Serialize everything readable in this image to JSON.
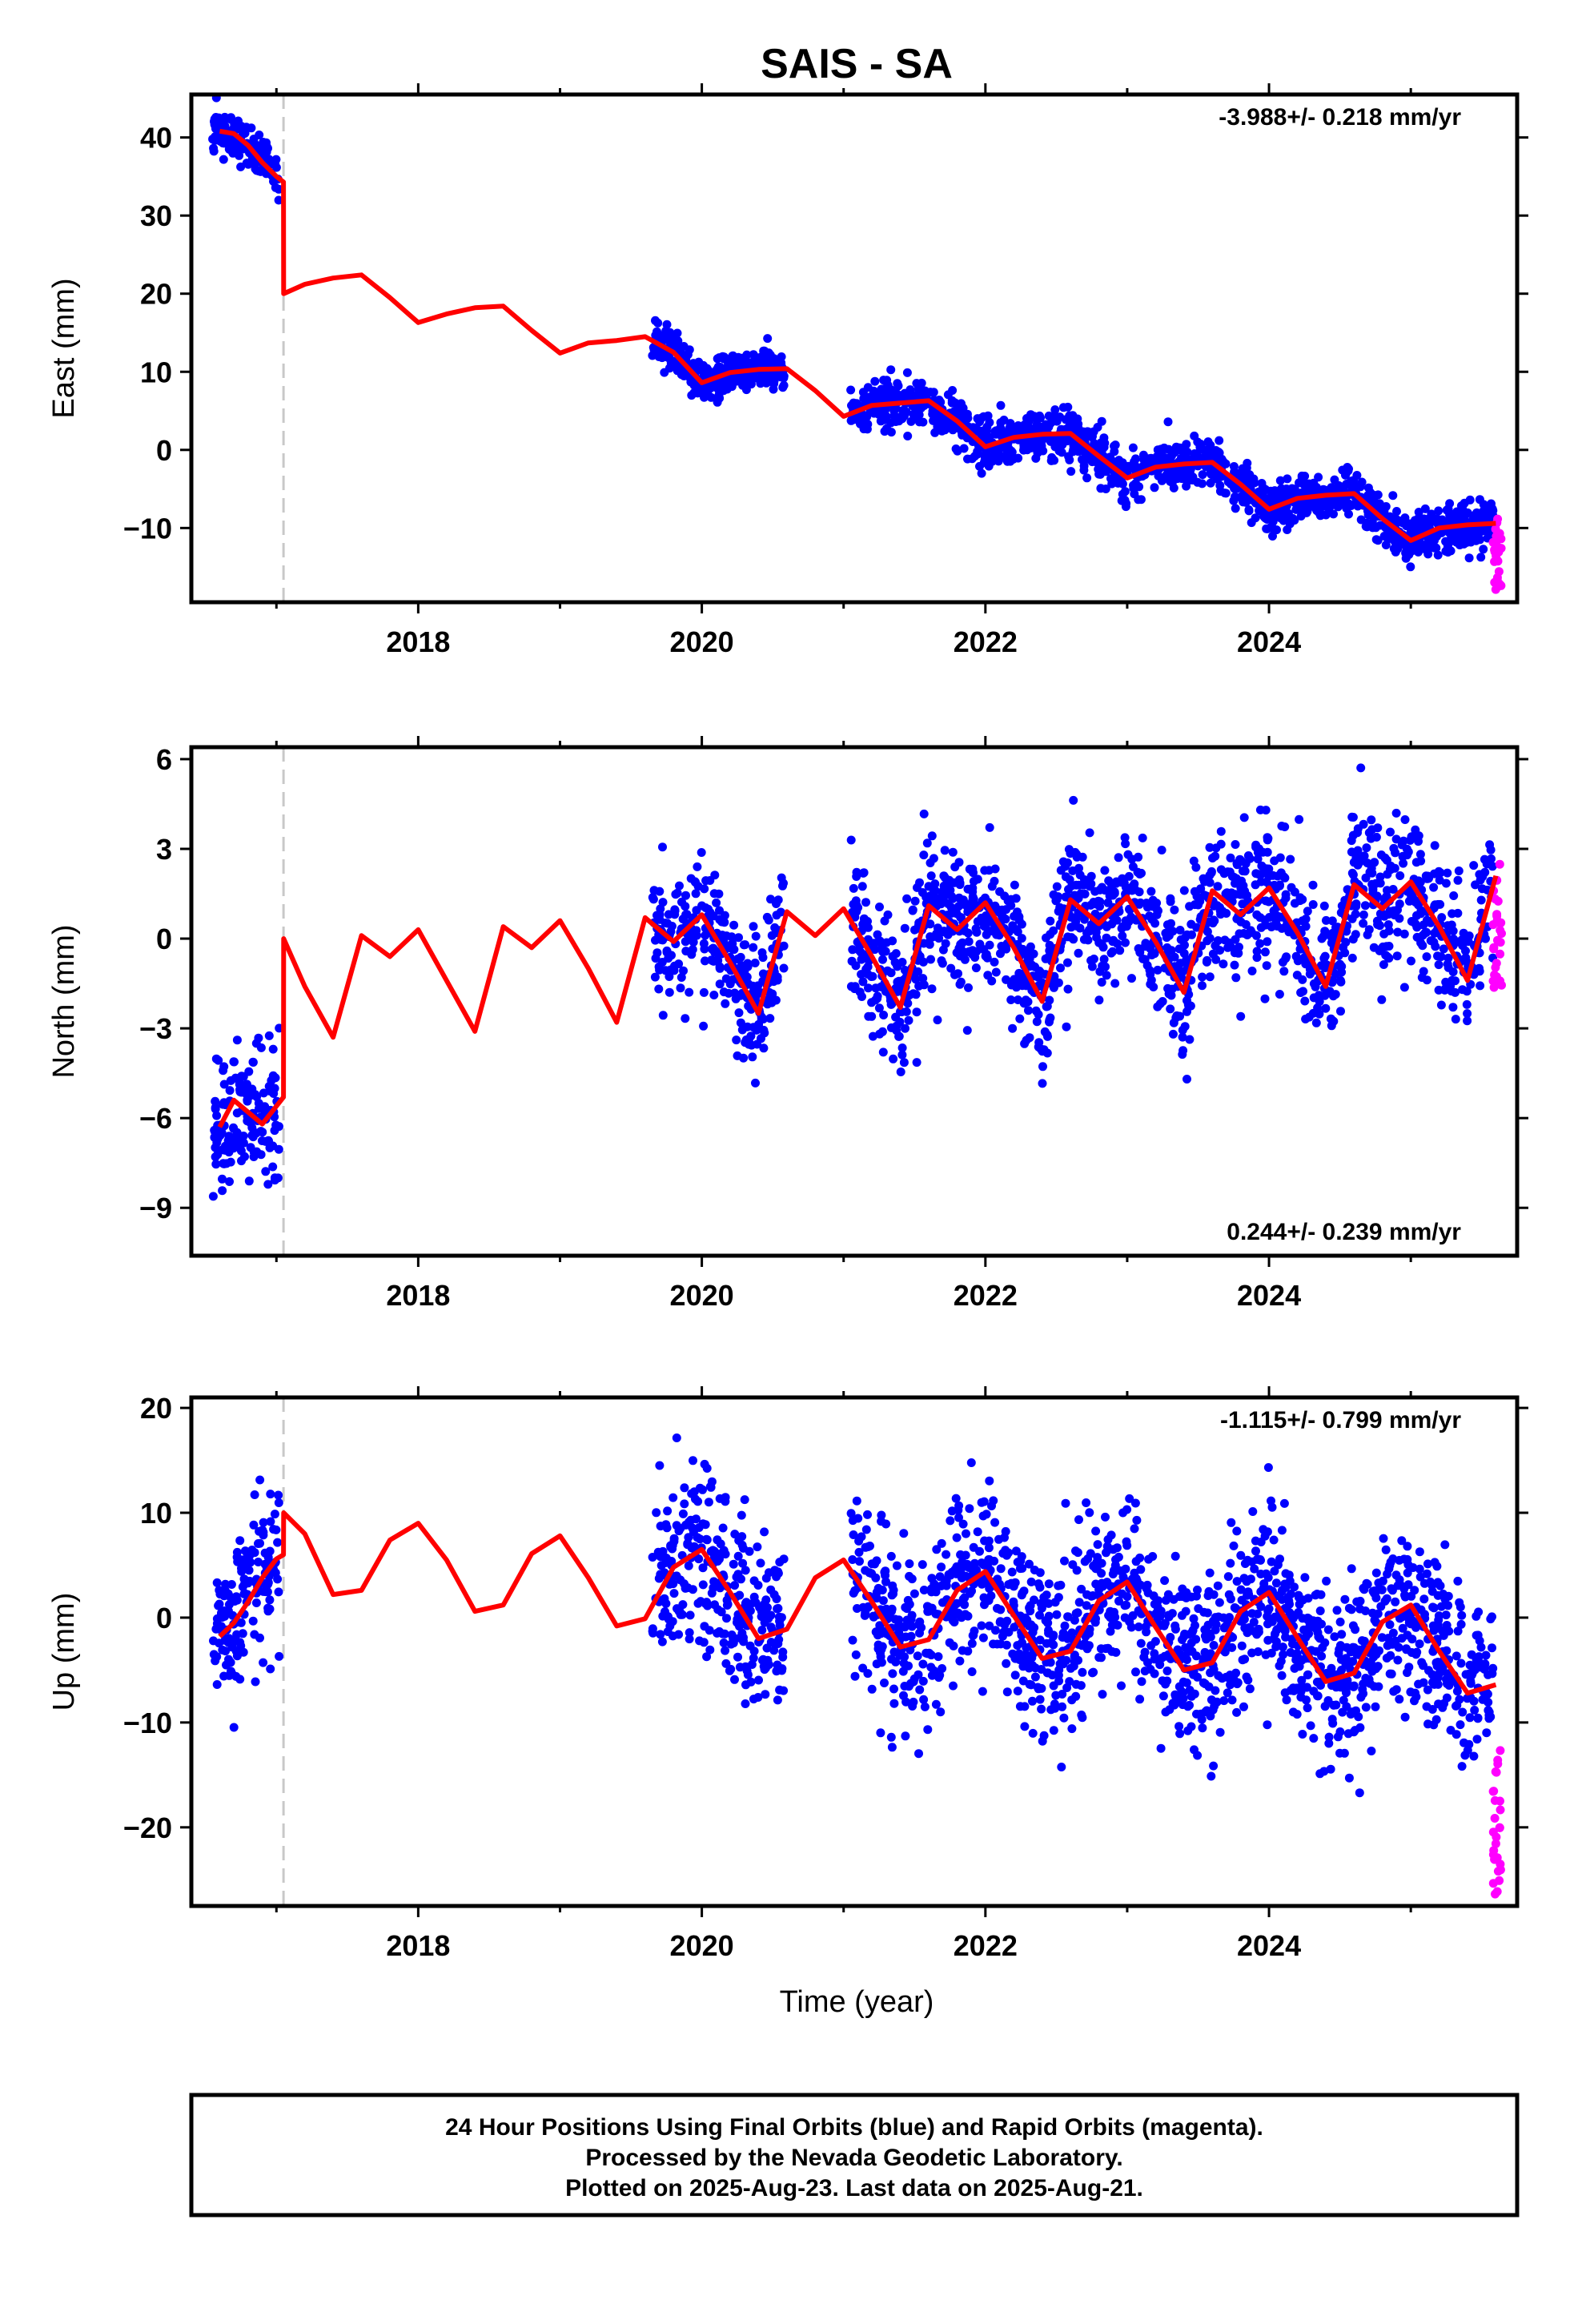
{
  "colors": {
    "final_points": "#0000ff",
    "rapid_points": "#ff00ff",
    "model": "#ff0000",
    "offset_line": "#c8c8c8",
    "frame": "#000000"
  },
  "chart_data": [
    {
      "type": "scatter",
      "title": "SAIS - SA",
      "ylabel": "East (mm)",
      "xlabel": "",
      "xlim": [
        2016.4,
        2025.75
      ],
      "ylim": [
        -19.5,
        45.5
      ],
      "xticks": [
        2018,
        2020,
        2022,
        2024
      ],
      "yticks": [
        -10,
        0,
        10,
        20,
        30,
        40
      ],
      "offset_epoch": 2017.05,
      "annotation": "-3.988+/- 0.218 mm/yr",
      "annotation_pos": "top-right",
      "model": {
        "x": [
          2016.6,
          2016.7,
          2016.8,
          2016.9,
          2017.0,
          2017.05,
          2017.051,
          2017.2,
          2017.4,
          2017.6,
          2017.8,
          2018.0,
          2018.2,
          2018.4,
          2018.6,
          2018.8,
          2019.0,
          2019.2,
          2019.4,
          2019.6,
          2019.8,
          2020.0,
          2020.2,
          2020.4,
          2020.6,
          2020.8,
          2021.0,
          2021.2,
          2021.4,
          2021.6,
          2021.8,
          2022.0,
          2022.2,
          2022.4,
          2022.6,
          2022.8,
          2023.0,
          2023.2,
          2023.4,
          2023.6,
          2023.8,
          2024.0,
          2024.2,
          2024.4,
          2024.6,
          2024.8,
          2025.0,
          2025.2,
          2025.4,
          2025.6
        ],
        "y": [
          40.8,
          40.5,
          39.0,
          36.8,
          35.0,
          34.3,
          20.0,
          21.2,
          22.0,
          22.4,
          19.5,
          16.3,
          17.4,
          18.2,
          18.4,
          15.3,
          12.4,
          13.7,
          14.0,
          14.5,
          12.5,
          8.6,
          9.9,
          10.3,
          10.4,
          7.6,
          4.3,
          5.7,
          6.0,
          6.3,
          3.7,
          0.4,
          1.6,
          2.0,
          2.1,
          -0.8,
          -3.6,
          -2.2,
          -1.8,
          -1.6,
          -4.4,
          -7.6,
          -6.2,
          -5.8,
          -5.6,
          -8.8,
          -11.6,
          -10.0,
          -9.6,
          -9.4
        ]
      },
      "final_segments": [
        {
          "x_start": 2016.55,
          "x_end": 2017.02,
          "trend": "model",
          "scatter": 1.4
        },
        {
          "x_start": 2019.65,
          "x_end": 2020.58,
          "trend": "model",
          "scatter": 1.4
        },
        {
          "x_start": 2021.05,
          "x_end": 2025.58,
          "trend": "model",
          "scatter": 1.5
        }
      ],
      "rapid_segment": {
        "x_start": 2025.58,
        "x_end": 2025.64,
        "y_min": -18.0,
        "y_max": -8.0
      }
    },
    {
      "type": "scatter",
      "title": "",
      "ylabel": "North (mm)",
      "xlabel": "",
      "xlim": [
        2016.4,
        2025.75
      ],
      "ylim": [
        -10.6,
        6.4
      ],
      "xticks": [
        2018,
        2020,
        2022,
        2024
      ],
      "yticks": [
        -9,
        -6,
        -3,
        0,
        3,
        6
      ],
      "offset_epoch": 2017.05,
      "annotation": "0.244+/- 0.239 mm/yr",
      "annotation_pos": "bottom-right",
      "model": {
        "x": [
          2016.6,
          2016.7,
          2016.8,
          2016.9,
          2017.0,
          2017.05,
          2017.051,
          2017.2,
          2017.4,
          2017.6,
          2017.8,
          2018.0,
          2018.2,
          2018.4,
          2018.6,
          2018.8,
          2019.0,
          2019.2,
          2019.4,
          2019.6,
          2019.8,
          2020.0,
          2020.2,
          2020.4,
          2020.6,
          2020.8,
          2021.0,
          2021.2,
          2021.4,
          2021.6,
          2021.8,
          2022.0,
          2022.2,
          2022.4,
          2022.6,
          2022.8,
          2023.0,
          2023.2,
          2023.4,
          2023.6,
          2023.8,
          2024.0,
          2024.2,
          2024.4,
          2024.6,
          2024.8,
          2025.0,
          2025.2,
          2025.4,
          2025.6
        ],
        "y": [
          -6.3,
          -5.4,
          -5.8,
          -6.2,
          -5.6,
          -5.3,
          0.0,
          -1.6,
          -3.3,
          0.1,
          -0.6,
          0.3,
          -1.4,
          -3.1,
          0.4,
          -0.3,
          0.6,
          -1.0,
          -2.8,
          0.7,
          -0.1,
          0.8,
          -0.8,
          -2.5,
          0.9,
          0.1,
          1.0,
          -0.6,
          -2.3,
          1.1,
          0.3,
          1.2,
          -0.3,
          -2.1,
          1.3,
          0.5,
          1.4,
          -0.1,
          -1.8,
          1.6,
          0.8,
          1.7,
          0.2,
          -1.6,
          1.8,
          1.0,
          1.9,
          0.4,
          -1.4,
          2.1
        ]
      },
      "final_segments": [
        {
          "x_start": 2016.55,
          "x_end": 2017.02,
          "trend": "model",
          "scatter": 1.1
        },
        {
          "x_start": 2019.65,
          "x_end": 2020.58,
          "trend": "model",
          "scatter": 1.0
        },
        {
          "x_start": 2021.05,
          "x_end": 2025.58,
          "trend": "model",
          "scatter": 1.2
        }
      ],
      "rapid_segment": {
        "x_start": 2025.58,
        "x_end": 2025.64,
        "y_min": -1.8,
        "y_max": 2.6
      }
    },
    {
      "type": "scatter",
      "title": "",
      "ylabel": "Up (mm)",
      "xlabel": "Time (year)",
      "xlim": [
        2016.4,
        2025.75
      ],
      "ylim": [
        -27.5,
        21.0
      ],
      "xticks": [
        2018,
        2020,
        2022,
        2024
      ],
      "yticks": [
        -20,
        -10,
        0,
        10,
        20
      ],
      "offset_epoch": 2017.05,
      "annotation": "-1.115+/- 0.799 mm/yr",
      "annotation_pos": "top-right",
      "model": {
        "x": [
          2016.6,
          2016.7,
          2016.8,
          2016.9,
          2017.0,
          2017.05,
          2017.051,
          2017.2,
          2017.4,
          2017.6,
          2017.8,
          2018.0,
          2018.2,
          2018.4,
          2018.6,
          2018.8,
          2019.0,
          2019.2,
          2019.4,
          2019.6,
          2019.8,
          2020.0,
          2020.2,
          2020.4,
          2020.6,
          2020.8,
          2021.0,
          2021.2,
          2021.4,
          2021.6,
          2021.8,
          2022.0,
          2022.2,
          2022.4,
          2022.6,
          2022.8,
          2023.0,
          2023.2,
          2023.4,
          2023.6,
          2023.8,
          2024.0,
          2024.2,
          2024.4,
          2024.6,
          2024.8,
          2025.0,
          2025.2,
          2025.4,
          2025.6
        ],
        "y": [
          -1.8,
          -0.5,
          1.5,
          3.8,
          5.6,
          6.0,
          10.0,
          8.0,
          2.2,
          2.6,
          7.4,
          9.0,
          5.5,
          0.6,
          1.2,
          6.1,
          7.8,
          3.8,
          -0.8,
          -0.1,
          4.8,
          6.5,
          2.4,
          -2.0,
          -1.1,
          3.8,
          5.5,
          1.5,
          -2.8,
          -2.1,
          2.6,
          4.4,
          0.2,
          -3.9,
          -3.2,
          1.6,
          3.4,
          -0.9,
          -5.0,
          -4.3,
          0.6,
          2.4,
          -1.9,
          -6.1,
          -5.3,
          -0.4,
          1.2,
          -3.2,
          -7.2,
          -6.4
        ]
      },
      "final_segments": [
        {
          "x_start": 2016.55,
          "x_end": 2017.02,
          "trend": "model",
          "scatter": 4.0
        },
        {
          "x_start": 2019.65,
          "x_end": 2020.58,
          "trend": "model",
          "scatter": 4.0
        },
        {
          "x_start": 2021.05,
          "x_end": 2025.58,
          "trend": "model",
          "scatter": 4.2
        }
      ],
      "rapid_segment": {
        "x_start": 2025.58,
        "x_end": 2025.64,
        "y_min": -26.5,
        "y_max": -12.5
      }
    }
  ],
  "footer": {
    "line1": "24 Hour Positions Using Final Orbits (blue) and Rapid Orbits (magenta).",
    "line2": "Processed by the Nevada Geodetic Laboratory.",
    "line3": "Plotted on 2025-Aug-23. Last data on 2025-Aug-21."
  }
}
